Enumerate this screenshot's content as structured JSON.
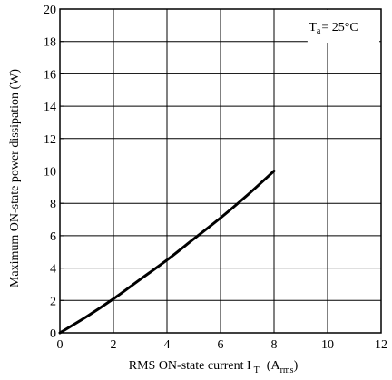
{
  "chart_data": {
    "type": "line",
    "title": "",
    "xlabel": "RMS ON-state current I",
    "xlabel_sub": "T",
    "xlabel_unit_base": "(A",
    "xlabel_unit_sub": "rms",
    "xlabel_unit_close": ")",
    "ylabel": "Maximum ON-state power dissipation (W)",
    "xlim": [
      0,
      12
    ],
    "ylim": [
      0,
      20
    ],
    "x_ticks": [
      0,
      2,
      4,
      6,
      8,
      10,
      12
    ],
    "y_ticks": [
      0,
      2,
      4,
      6,
      8,
      10,
      12,
      14,
      16,
      18,
      20
    ],
    "grid": true,
    "annotation": {
      "base": "T",
      "sub": "a",
      "rest": "= 25°C",
      "placement": "top-right"
    },
    "series": [
      {
        "x": [
          0,
          1,
          2,
          3,
          4,
          5,
          6,
          7,
          8
        ],
        "y": [
          0,
          1.0,
          2.1,
          3.3,
          4.5,
          5.8,
          7.1,
          8.5,
          10.0
        ]
      }
    ]
  }
}
